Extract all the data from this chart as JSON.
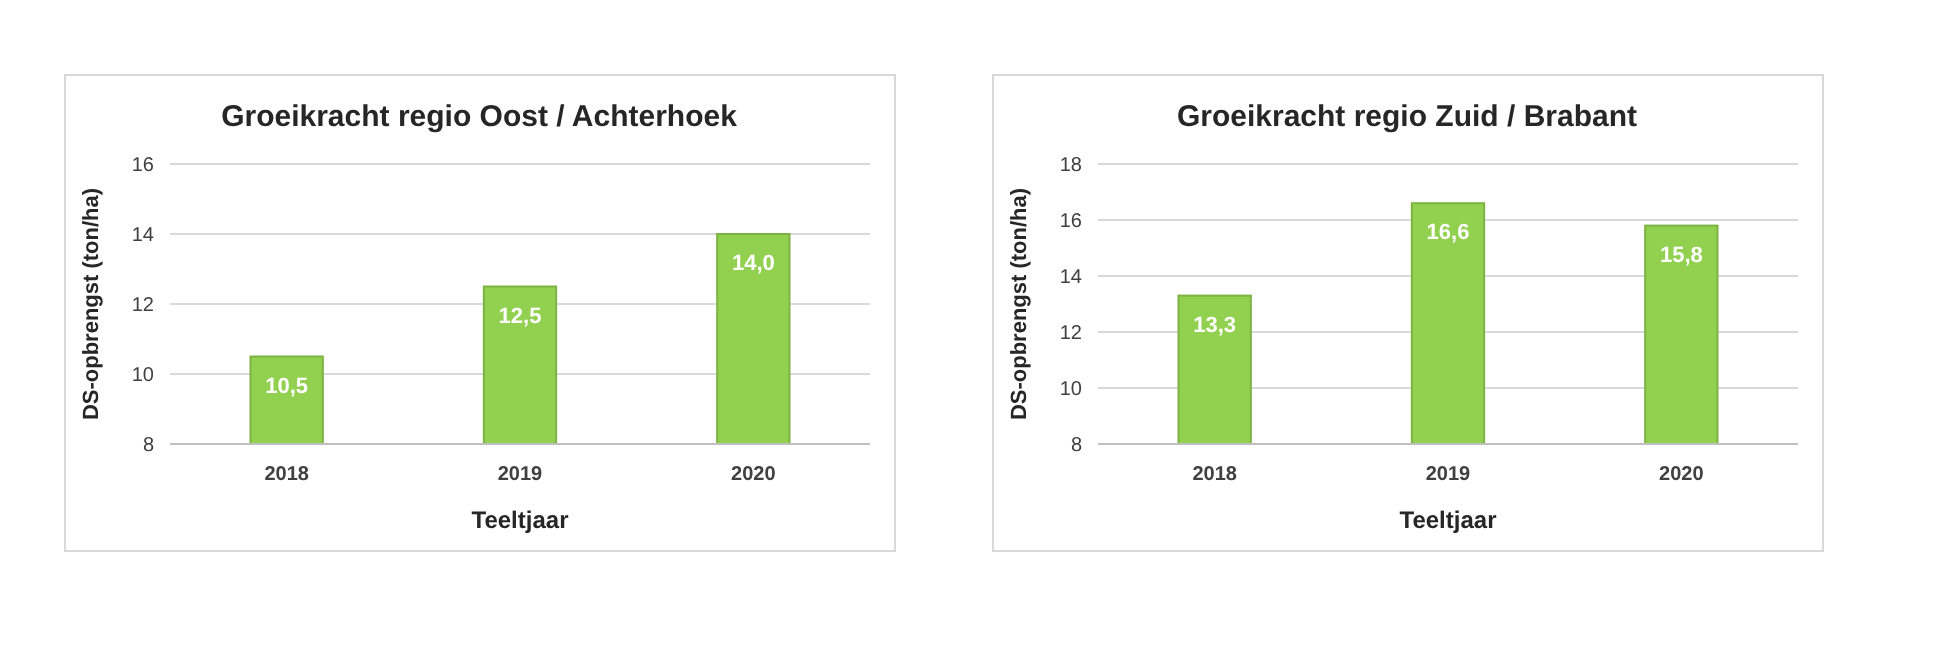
{
  "chart_data": [
    {
      "type": "bar",
      "title": "Groeikracht regio Oost / Achterhoek",
      "xlabel": "Teeltjaar",
      "ylabel": "DS-opbrengst (ton/ha)",
      "categories": [
        "2018",
        "2019",
        "2020"
      ],
      "values": [
        10.5,
        12.5,
        14.0
      ],
      "value_labels": [
        "10,5",
        "12,5",
        "14,0"
      ],
      "color": "#92d050",
      "ylim": [
        8,
        16
      ],
      "yticks": [
        8,
        10,
        12,
        14,
        16
      ],
      "grid": "y"
    },
    {
      "type": "bar",
      "title": "Groeikracht regio Zuid / Brabant",
      "xlabel": "Teeltjaar",
      "ylabel": "DS-opbrengst (ton/ha)",
      "categories": [
        "2018",
        "2019",
        "2020"
      ],
      "values": [
        13.3,
        16.6,
        15.8
      ],
      "value_labels": [
        "13,3",
        "16,6",
        "15,8"
      ],
      "color": "#92d050",
      "ylim": [
        8,
        18
      ],
      "yticks": [
        8,
        10,
        12,
        14,
        16,
        18
      ],
      "grid": "y"
    }
  ]
}
